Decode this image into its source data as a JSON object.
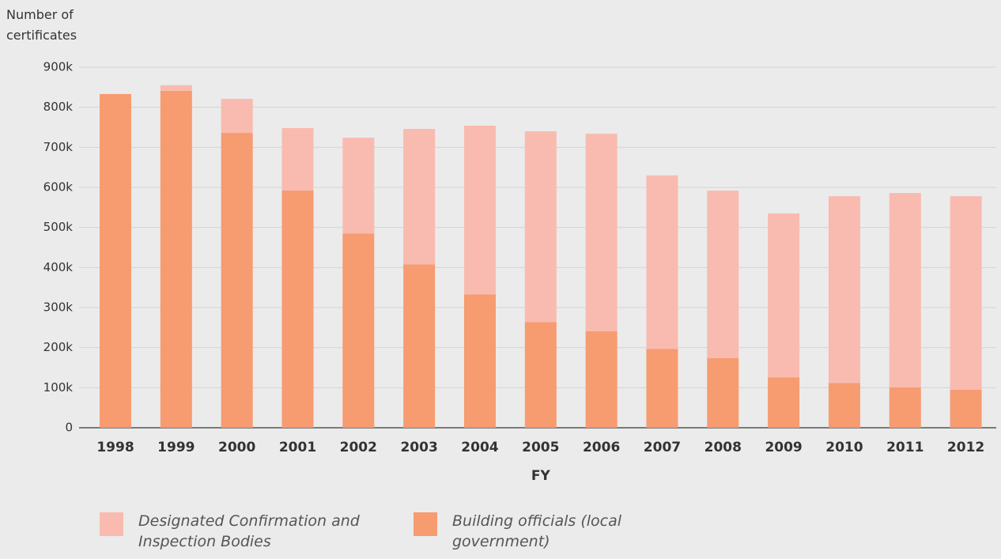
{
  "chart_data": {
    "type": "stacked_bar",
    "y_axis_title": "Number of certificates",
    "x_axis_title": "FY",
    "categories": [
      "1998",
      "1999",
      "2000",
      "2001",
      "2002",
      "2003",
      "2004",
      "2005",
      "2006",
      "2007",
      "2008",
      "2009",
      "2010",
      "2011",
      "2012"
    ],
    "series": [
      {
        "name": "Building officials (local government)",
        "color": "#f79b70",
        "values": [
          833000,
          841000,
          736000,
          592000,
          485000,
          408000,
          333000,
          264000,
          241000,
          197000,
          174000,
          126000,
          112000,
          101000,
          95000
        ]
      },
      {
        "name": "Designated Confirmation and Inspection Bodies",
        "color": "#f9bbaf",
        "values": [
          0,
          14000,
          85000,
          156000,
          239000,
          338000,
          421000,
          476000,
          493000,
          433000,
          418000,
          409000,
          466000,
          485000,
          483000
        ]
      }
    ],
    "ylim": [
      0,
      900000
    ],
    "yticks": [
      0,
      {
        "value": 100000,
        "label": "100k"
      },
      {
        "value": 200000,
        "label": "200k"
      },
      {
        "value": 300000,
        "label": "300k"
      },
      {
        "value": 400000,
        "label": "400k"
      },
      {
        "value": 500000,
        "label": "500k"
      },
      {
        "value": 600000,
        "label": "600k"
      },
      {
        "value": 700000,
        "label": "700k"
      },
      {
        "value": 800000,
        "label": "800k"
      },
      {
        "value": 900000,
        "label": "900k"
      }
    ],
    "grid": true
  }
}
